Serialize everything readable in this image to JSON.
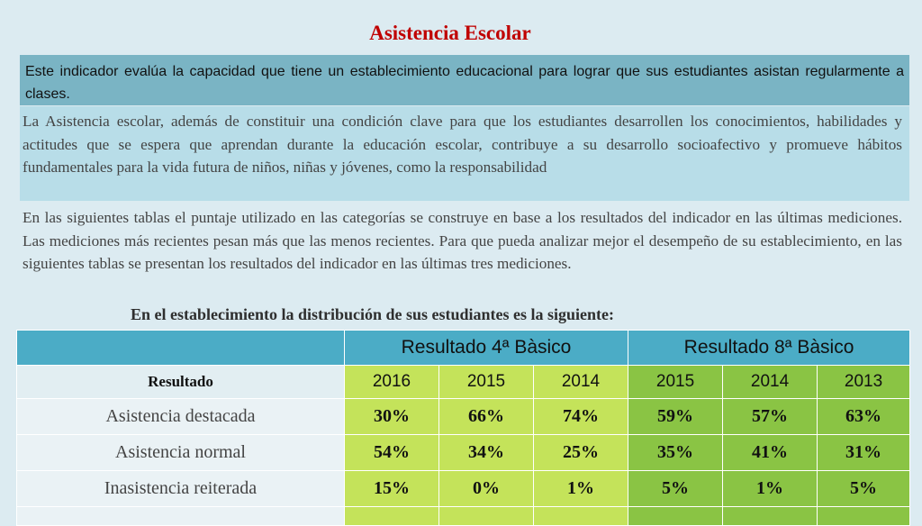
{
  "title": "Asistencia Escolar",
  "intro_box": "Este indicador evalúa la capacidad que tiene un  establecimiento educacional para  lograr que sus estudiantes asistan regularmente a clases.",
  "description_box": "La Asistencia escolar, además de  constituir una condición  clave  para que los estudiantes desarrollen los conocimientos, habilidades y actitudes que se espera que aprendan durante la educación escolar, contribuye a su desarrollo socioafectivo y promueve hábitos fundamentales para la vida futura de niños, niñas y jóvenes, como la responsabilidad",
  "explanation": "En las siguientes tablas el puntaje utilizado en las categorías se  construye en  base a los  resultados del indicador en  las últimas mediciones. Las mediciones más recientes pesan más que las  menos recientes. Para que pueda analizar mejor el desempeño de su establecimiento, en  las siguientes tablas se  presentan los resultados del indicador en  las últimas tres mediciones.",
  "table_title": "En el  establecimiento la  distribución de  sus estudiantes es la siguiente:",
  "table": {
    "group_headers": [
      "Resultado 4ª Bàsico",
      "Resultado 8ª Bàsico"
    ],
    "label_header": "Resultado",
    "years_4": [
      "2016",
      "2015",
      "2014"
    ],
    "years_8": [
      "2015",
      "2014",
      "2013"
    ],
    "rows": [
      {
        "label": "Asistencia destacada",
        "values_4": [
          "30%",
          "66%",
          "74%"
        ],
        "values_8": [
          "59%",
          "57%",
          "63%"
        ]
      },
      {
        "label": "Asistencia normal",
        "values_4": [
          "54%",
          "34%",
          "25%"
        ],
        "values_8": [
          "35%",
          "41%",
          "31%"
        ]
      },
      {
        "label": "Inasistencia reiterada",
        "values_4": [
          "15%",
          "0%",
          "1%"
        ],
        "values_8": [
          "5%",
          "1%",
          "5%"
        ]
      }
    ]
  },
  "colors": {
    "title": "#c00000",
    "intro_bg": "#7ab4c4",
    "description_bg": "#b8dde8",
    "header_bg": "#4bacc6",
    "grade4_bg": "#c4e35a",
    "grade8_bg": "#8ac444"
  }
}
